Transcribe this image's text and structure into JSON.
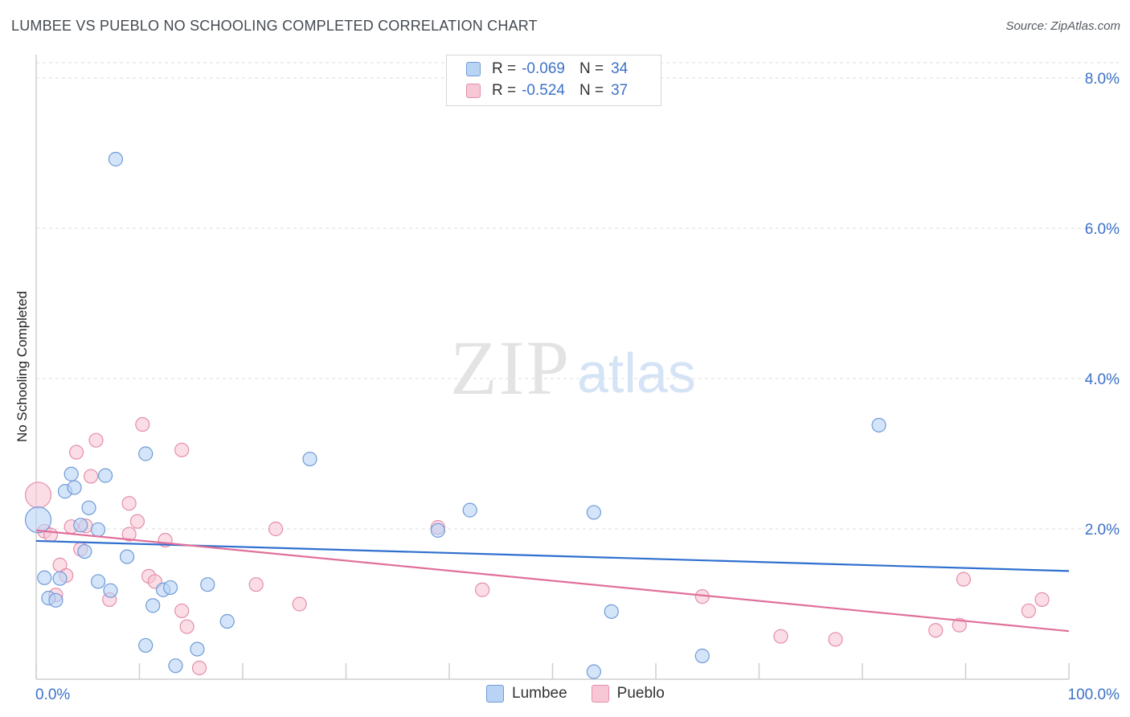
{
  "chart_data": {
    "type": "scatter",
    "title": "LUMBEE VS PUEBLO NO SCHOOLING COMPLETED CORRELATION CHART",
    "source": "Source: ZipAtlas.com",
    "xlabel": "",
    "ylabel": "No Schooling Completed",
    "xlim": [
      0,
      100
    ],
    "ylim": [
      0,
      8
    ],
    "x_tick_labels": [
      "0.0%",
      "100.0%"
    ],
    "y_ticks": [
      {
        "value": 2,
        "label": "2.0%"
      },
      {
        "value": 4,
        "label": "4.0%"
      },
      {
        "value": 6,
        "label": "6.0%"
      },
      {
        "value": 8,
        "label": "8.0%"
      }
    ],
    "watermark": {
      "zip": "ZIP",
      "atlas": "atlas"
    },
    "legend": {
      "rows": [
        {
          "r_label": "R =",
          "r_value": "-0.069",
          "n_label": "N =",
          "n_value": "34"
        },
        {
          "r_label": "R =",
          "r_value": "-0.524",
          "n_label": "N =",
          "n_value": "37"
        }
      ]
    },
    "series": [
      {
        "name": "Lumbee",
        "fill": "#b9d3f5",
        "stroke": "#6f9bd8",
        "line_color": "#2f6fcf",
        "trend": {
          "x0": 0,
          "y0": 1.84,
          "x1": 100,
          "y1": 1.44
        },
        "points": [
          {
            "x": 0.2,
            "y": 2.12,
            "r": 16
          },
          {
            "x": 0.8,
            "y": 1.35
          },
          {
            "x": 1.2,
            "y": 1.08
          },
          {
            "x": 1.9,
            "y": 1.05
          },
          {
            "x": 2.3,
            "y": 1.34
          },
          {
            "x": 2.8,
            "y": 2.5
          },
          {
            "x": 3.4,
            "y": 2.73
          },
          {
            "x": 3.7,
            "y": 2.55
          },
          {
            "x": 4.3,
            "y": 2.05
          },
          {
            "x": 4.7,
            "y": 1.7
          },
          {
            "x": 5.1,
            "y": 2.28
          },
          {
            "x": 6.0,
            "y": 1.99
          },
          {
            "x": 6.0,
            "y": 1.3
          },
          {
            "x": 6.7,
            "y": 2.71
          },
          {
            "x": 7.2,
            "y": 1.18
          },
          {
            "x": 7.7,
            "y": 6.92
          },
          {
            "x": 8.8,
            "y": 1.63
          },
          {
            "x": 10.6,
            "y": 3.0
          },
          {
            "x": 10.6,
            "y": 0.45
          },
          {
            "x": 11.3,
            "y": 0.98
          },
          {
            "x": 12.3,
            "y": 1.19
          },
          {
            "x": 13.0,
            "y": 1.22
          },
          {
            "x": 13.5,
            "y": 0.18
          },
          {
            "x": 15.6,
            "y": 0.4
          },
          {
            "x": 16.6,
            "y": 1.26
          },
          {
            "x": 18.5,
            "y": 0.77
          },
          {
            "x": 26.5,
            "y": 2.93
          },
          {
            "x": 38.9,
            "y": 1.98
          },
          {
            "x": 42.0,
            "y": 2.25
          },
          {
            "x": 54.0,
            "y": 2.22
          },
          {
            "x": 54.0,
            "y": 0.1
          },
          {
            "x": 55.7,
            "y": 0.9
          },
          {
            "x": 64.5,
            "y": 0.31
          },
          {
            "x": 81.6,
            "y": 3.38
          }
        ]
      },
      {
        "name": "Pueblo",
        "fill": "#f8c7d6",
        "stroke": "#e48eab",
        "line_color": "#e0709b",
        "trend": {
          "x0": 0,
          "y0": 1.98,
          "x1": 100,
          "y1": 0.64
        },
        "points": [
          {
            "x": 0.2,
            "y": 2.45,
            "r": 16
          },
          {
            "x": 0.8,
            "y": 1.97
          },
          {
            "x": 1.4,
            "y": 1.92
          },
          {
            "x": 1.9,
            "y": 1.12
          },
          {
            "x": 2.3,
            "y": 1.52
          },
          {
            "x": 2.9,
            "y": 1.38
          },
          {
            "x": 3.4,
            "y": 2.03
          },
          {
            "x": 3.9,
            "y": 3.02
          },
          {
            "x": 4.3,
            "y": 1.73
          },
          {
            "x": 4.8,
            "y": 2.04
          },
          {
            "x": 5.3,
            "y": 2.7
          },
          {
            "x": 5.8,
            "y": 3.18
          },
          {
            "x": 7.1,
            "y": 1.06
          },
          {
            "x": 9.0,
            "y": 1.93
          },
          {
            "x": 9.0,
            "y": 2.34
          },
          {
            "x": 9.8,
            "y": 2.1
          },
          {
            "x": 10.3,
            "y": 3.39
          },
          {
            "x": 10.9,
            "y": 1.37
          },
          {
            "x": 11.5,
            "y": 1.3
          },
          {
            "x": 12.5,
            "y": 1.85
          },
          {
            "x": 14.1,
            "y": 3.05
          },
          {
            "x": 14.1,
            "y": 0.91
          },
          {
            "x": 14.6,
            "y": 0.7
          },
          {
            "x": 15.8,
            "y": 0.15
          },
          {
            "x": 21.3,
            "y": 1.26
          },
          {
            "x": 23.2,
            "y": 2.0
          },
          {
            "x": 25.5,
            "y": 1.0
          },
          {
            "x": 38.9,
            "y": 2.02
          },
          {
            "x": 43.2,
            "y": 1.19
          },
          {
            "x": 64.5,
            "y": 1.1
          },
          {
            "x": 72.1,
            "y": 0.57
          },
          {
            "x": 77.4,
            "y": 0.53
          },
          {
            "x": 87.1,
            "y": 0.65
          },
          {
            "x": 89.4,
            "y": 0.72
          },
          {
            "x": 89.8,
            "y": 1.33
          },
          {
            "x": 96.1,
            "y": 0.91
          },
          {
            "x": 97.4,
            "y": 1.06
          }
        ]
      }
    ]
  }
}
